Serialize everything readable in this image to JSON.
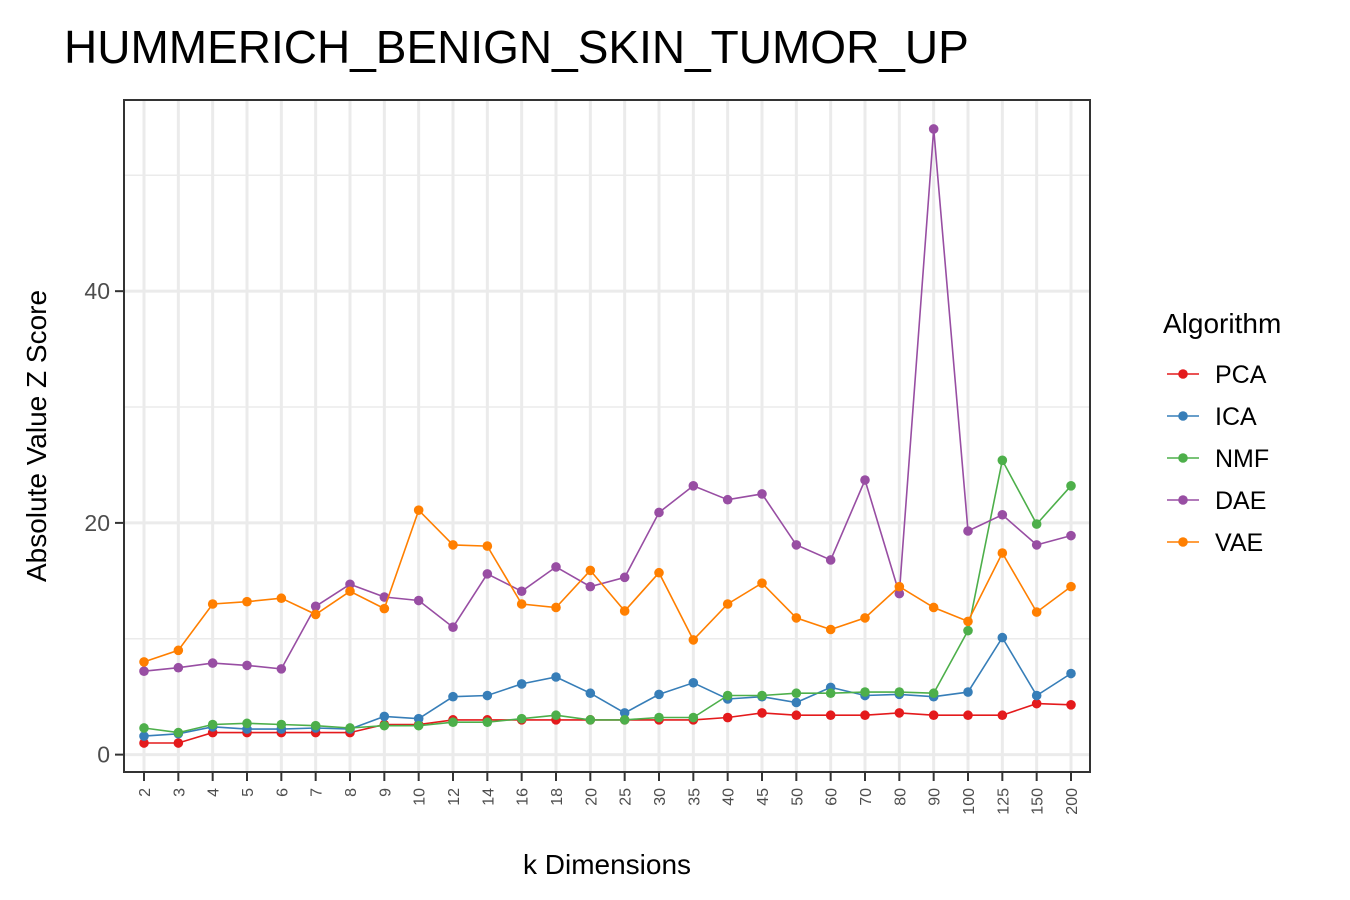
{
  "chart_data": {
    "type": "line",
    "title": "HUMMERICH_BENIGN_SKIN_TUMOR_UP",
    "xlabel": "k Dimensions",
    "ylabel": "Absolute Value Z Score",
    "categories": [
      "2",
      "3",
      "4",
      "5",
      "6",
      "7",
      "8",
      "9",
      "10",
      "12",
      "14",
      "16",
      "18",
      "20",
      "25",
      "30",
      "35",
      "40",
      "45",
      "50",
      "60",
      "70",
      "80",
      "90",
      "100",
      "125",
      "150",
      "200"
    ],
    "y_ticks": [
      0,
      20,
      40
    ],
    "y_tick_labels": [
      "0",
      "20",
      "40"
    ],
    "ylim": [
      -1.5,
      56.5
    ],
    "grid": true,
    "legend": {
      "title": "Algorithm",
      "position": "right"
    },
    "series": [
      {
        "name": "PCA",
        "color": "#E41A1C",
        "values": [
          1.0,
          1.0,
          1.9,
          1.9,
          1.9,
          1.9,
          1.9,
          2.6,
          2.6,
          3.0,
          3.0,
          3.0,
          3.0,
          3.0,
          3.0,
          3.0,
          3.0,
          3.2,
          3.6,
          3.4,
          3.4,
          3.4,
          3.6,
          3.4,
          3.4,
          3.4,
          4.4,
          4.3
        ]
      },
      {
        "name": "ICA",
        "color": "#377EB8",
        "values": [
          1.6,
          1.8,
          2.4,
          2.2,
          2.2,
          2.3,
          2.2,
          3.3,
          3.1,
          5.0,
          5.1,
          6.1,
          6.7,
          5.3,
          3.6,
          5.2,
          6.2,
          4.8,
          5.0,
          4.5,
          5.8,
          5.1,
          5.2,
          5.0,
          5.4,
          10.1,
          5.1,
          7.0
        ]
      },
      {
        "name": "NMF",
        "color": "#4DAF4A",
        "values": [
          2.3,
          1.9,
          2.6,
          2.7,
          2.6,
          2.5,
          2.3,
          2.5,
          2.5,
          2.8,
          2.8,
          3.1,
          3.4,
          3.0,
          3.0,
          3.2,
          3.2,
          5.1,
          5.1,
          5.3,
          5.3,
          5.4,
          5.4,
          5.3,
          10.7,
          25.4,
          19.9,
          23.2
        ]
      },
      {
        "name": "DAE",
        "color": "#984EA3",
        "values": [
          7.2,
          7.5,
          7.9,
          7.7,
          7.4,
          12.8,
          14.7,
          13.6,
          13.3,
          11.0,
          15.6,
          14.1,
          16.2,
          14.5,
          15.3,
          20.9,
          23.2,
          22.0,
          22.5,
          18.1,
          16.8,
          23.7,
          13.9,
          54.0,
          19.3,
          20.7,
          18.1,
          18.9
        ]
      },
      {
        "name": "VAE",
        "color": "#FF7F00",
        "values": [
          8.0,
          9.0,
          13.0,
          13.2,
          13.5,
          12.1,
          14.1,
          12.6,
          21.1,
          18.1,
          18.0,
          13.0,
          12.7,
          15.9,
          12.4,
          15.7,
          9.9,
          13.0,
          14.8,
          11.8,
          10.8,
          11.8,
          14.5,
          12.7,
          11.5,
          17.4,
          12.3,
          14.5
        ]
      }
    ]
  }
}
